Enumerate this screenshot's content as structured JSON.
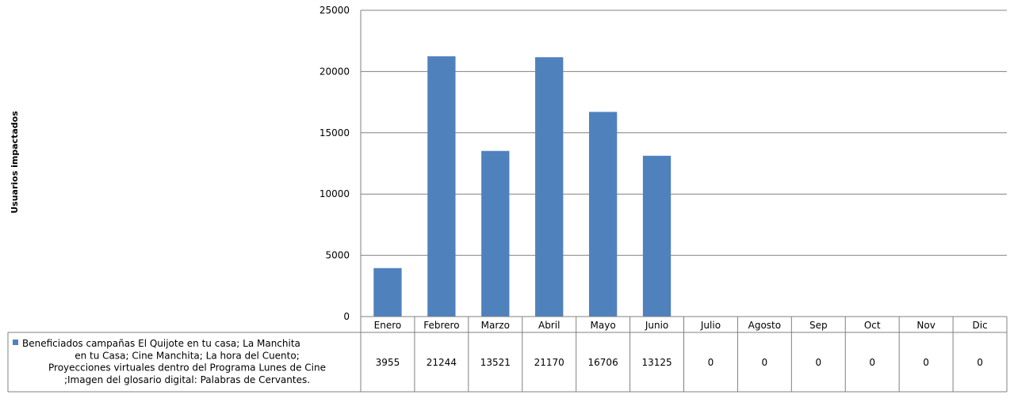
{
  "chart_data": {
    "type": "bar",
    "title": "",
    "xlabel": "",
    "ylabel": "Usuarios impactados",
    "ylim": [
      0,
      25000
    ],
    "yticks": [
      0,
      5000,
      10000,
      15000,
      20000,
      25000
    ],
    "grid": true,
    "categories": [
      "Enero",
      "Febrero",
      "Marzo",
      "Abril",
      "Mayo",
      "Junio",
      "Julio",
      "Agosto",
      "Sep",
      "Oct",
      "Nov",
      "Dic"
    ],
    "series": [
      {
        "name": "Beneficiados campañas El Quijote en tu casa; La Manchita en tu Casa; Cine Manchita; La hora del Cuento; Proyecciones virtuales dentro del Programa Lunes de Cine ;Imagen del glosario digital: Palabras  de Cervantes.",
        "name_lines": [
          "Beneficiados campañas El Quijote en tu casa; La Manchita",
          "en tu Casa; Cine Manchita; La hora del Cuento;",
          "Proyecciones virtuales dentro del Programa Lunes de Cine",
          ";Imagen del glosario digital: Palabras  de Cervantes."
        ],
        "values": [
          3955,
          21244,
          13521,
          21170,
          16706,
          13125,
          0,
          0,
          0,
          0,
          0,
          0
        ],
        "value_labels": [
          "3955",
          "21244",
          "13521",
          "21170",
          "16706",
          "13125",
          "0",
          "0",
          "0",
          "0",
          "0",
          "0"
        ],
        "color": "#4f81bd"
      }
    ],
    "data_table": true,
    "legend_placement": "data-table-left"
  }
}
